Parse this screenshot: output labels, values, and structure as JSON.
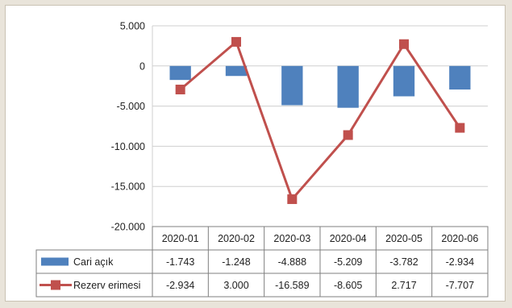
{
  "chart_data": {
    "type": "bar+line",
    "title": "",
    "xlabel": "",
    "ylabel": "",
    "categories": [
      "2020-01",
      "2020-02",
      "2020-03",
      "2020-04",
      "2020-05",
      "2020-06"
    ],
    "ylim": [
      -20000,
      5000
    ],
    "yticks": [
      5000,
      0,
      -5000,
      -10000,
      -15000,
      -20000
    ],
    "ytick_labels": [
      "5.000",
      "0",
      "-5.000",
      "-10.000",
      "-15.000",
      "-20.000"
    ],
    "grid": true,
    "legend": "in data table",
    "series": [
      {
        "name": "Cari açık",
        "kind": "bar",
        "color": "#4f81bd",
        "values": [
          -1743,
          -1248,
          -4888,
          -5209,
          -3782,
          -2934
        ],
        "labels": [
          "-1.743",
          "-1.248",
          "-4.888",
          "-5.209",
          "-3.782",
          "-2.934"
        ]
      },
      {
        "name": "Rezerv erimesi",
        "kind": "line",
        "color": "#c0504d",
        "values": [
          -2934,
          3000,
          -16589,
          -8605,
          2717,
          -7707
        ],
        "labels": [
          "-2.934",
          "3.000",
          "-16.589",
          "-8.605",
          "2.717",
          "-7.707"
        ]
      }
    ]
  }
}
